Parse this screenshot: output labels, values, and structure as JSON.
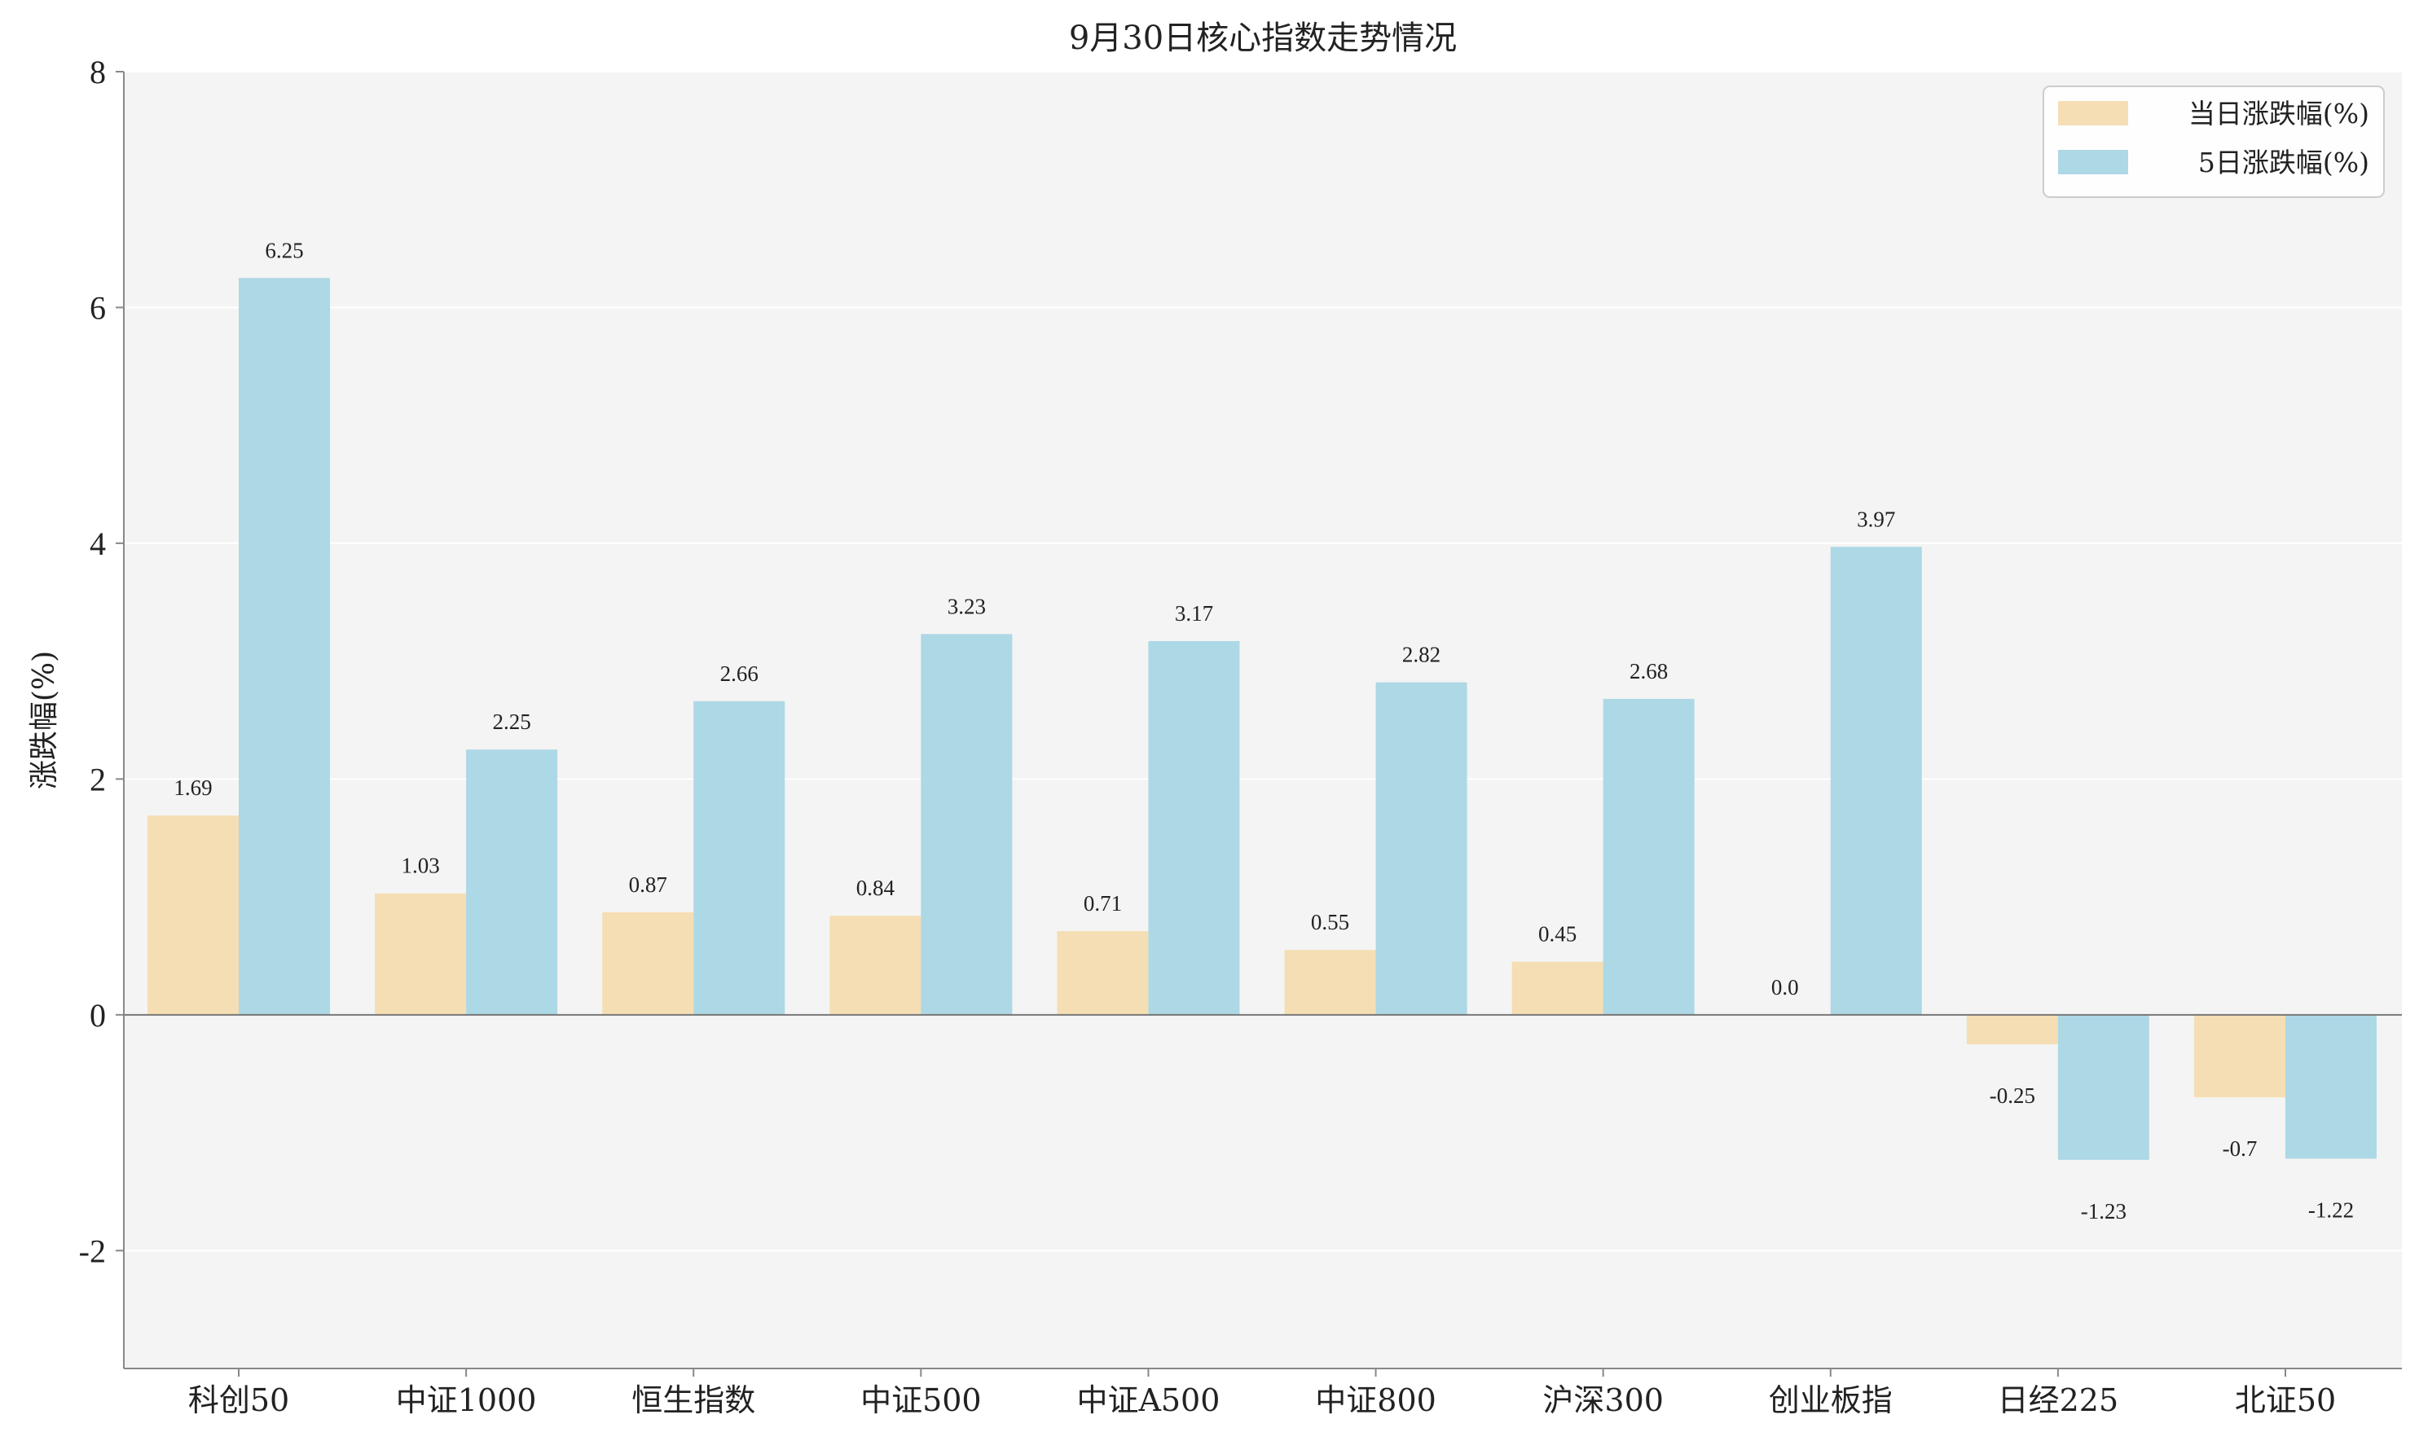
{
  "chart_data": {
    "type": "bar",
    "title": "9月30日核心指数走势情况",
    "xlabel": "",
    "ylabel": "涨跌幅(%)",
    "ylim": [
      -3,
      8
    ],
    "yticks": [
      -2,
      0,
      2,
      4,
      6,
      8
    ],
    "grid": true,
    "legend_position": "top-right",
    "categories": [
      "科创50",
      "中证1000",
      "恒生指数",
      "中证500",
      "中证A500",
      "中证800",
      "沪深300",
      "创业板指",
      "日经225",
      "北证50"
    ],
    "series": [
      {
        "name": "当日涨跌幅(%)",
        "color": "#F5DEB3",
        "values": [
          1.69,
          1.03,
          0.87,
          0.84,
          0.71,
          0.55,
          0.45,
          0.0,
          -0.25,
          -0.7
        ],
        "labels": [
          "1.69",
          "1.03",
          "0.87",
          "0.84",
          "0.71",
          "0.55",
          "0.45",
          "0.0",
          "-0.25",
          "-0.7"
        ]
      },
      {
        "name": "5日涨跌幅(%)",
        "color": "#ADD8E6",
        "values": [
          6.25,
          2.25,
          2.66,
          3.23,
          3.17,
          2.82,
          2.68,
          3.97,
          -1.23,
          -1.22
        ],
        "labels": [
          "6.25",
          "2.25",
          "2.66",
          "3.23",
          "3.17",
          "2.82",
          "2.68",
          "3.97",
          "-1.23",
          "-1.22"
        ]
      }
    ],
    "colors": {
      "plot_background": "#F4F4F4",
      "grid": "#FFFFFF",
      "axis": "#888888",
      "zero_line": "#777777"
    }
  }
}
